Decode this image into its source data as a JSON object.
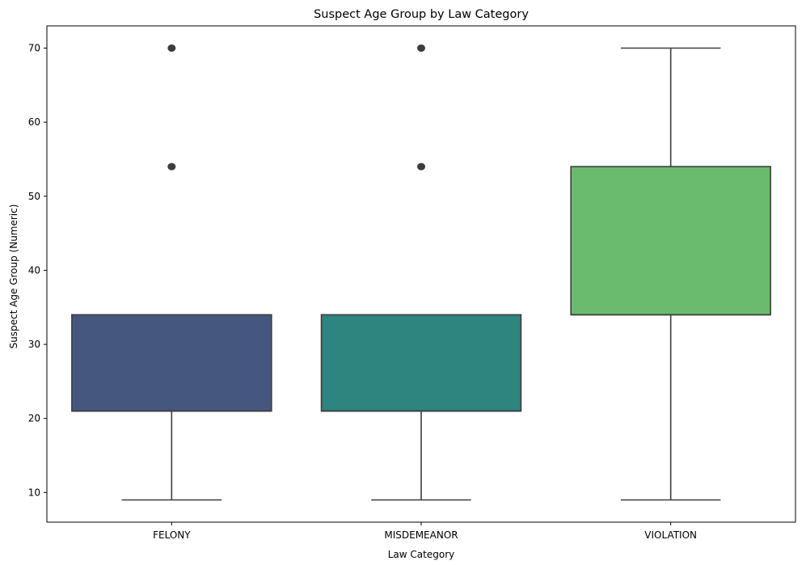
{
  "chart_data": {
    "type": "box",
    "title": "Suspect Age Group by Law Category",
    "xlabel": "Law Category",
    "ylabel": "Suspect Age Group (Numeric)",
    "ylim": [
      6,
      73
    ],
    "yticks": [
      10,
      20,
      30,
      40,
      50,
      60,
      70
    ],
    "categories": [
      "FELONY",
      "MISDEMEANOR",
      "VIOLATION"
    ],
    "boxes": [
      {
        "category": "FELONY",
        "whisker_low": 9,
        "q1": 21,
        "median": 21,
        "q3": 34,
        "whisker_high": 34,
        "outliers": [
          54,
          70
        ],
        "color": "#46577f"
      },
      {
        "category": "MISDEMEANOR",
        "whisker_low": 9,
        "q1": 21,
        "median": 21,
        "q3": 34,
        "whisker_high": 34,
        "outliers": [
          54,
          70
        ],
        "color": "#2e847f"
      },
      {
        "category": "VIOLATION",
        "whisker_low": 9,
        "q1": 34,
        "median": 34,
        "q3": 54,
        "whisker_high": 70,
        "outliers": [],
        "color": "#6abb6d"
      }
    ],
    "grid": false,
    "legend": "none"
  }
}
